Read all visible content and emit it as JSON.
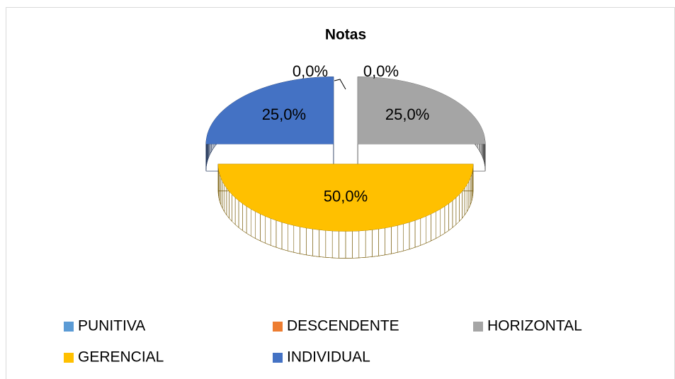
{
  "chart_data": {
    "type": "pie3d",
    "title": "Notas",
    "categories": [
      "PUNITIVA",
      "DESCENDENTE",
      "HORIZONTAL",
      "GERENCIAL",
      "INDIVIDUAL"
    ],
    "values": [
      0,
      0,
      25,
      50,
      25
    ],
    "value_labels": [
      "0,0%",
      "0,0%",
      "25,0%",
      "50,0%",
      "25,0%"
    ],
    "colors": [
      "#5b9bd5",
      "#ed7d31",
      "#a5a5a5",
      "#ffc000",
      "#4472c4"
    ],
    "legend": "bottom"
  }
}
